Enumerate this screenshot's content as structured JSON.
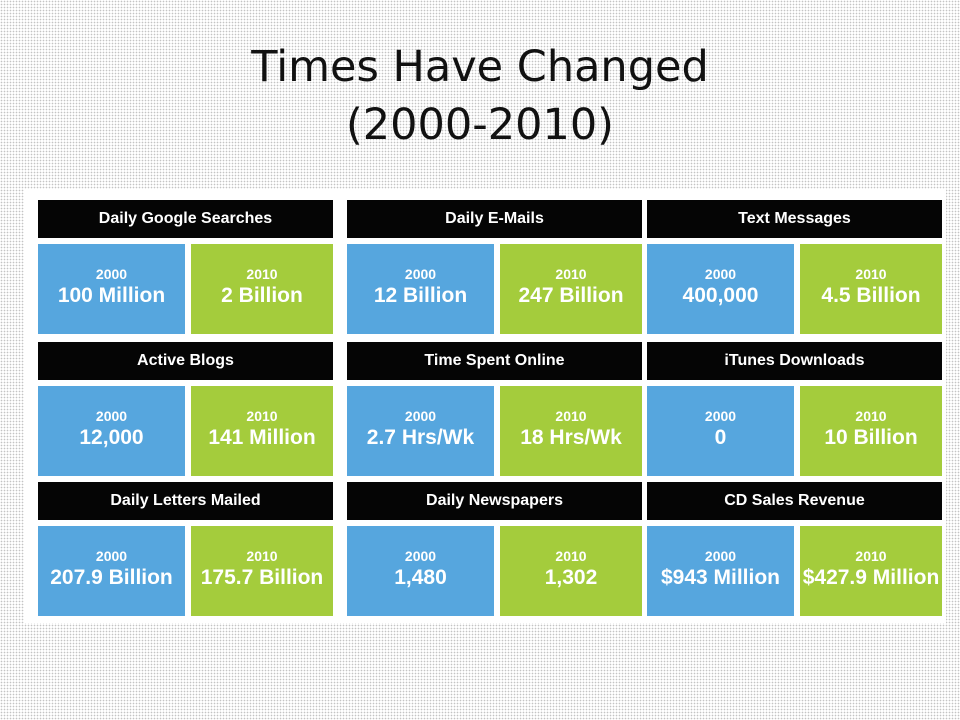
{
  "title": {
    "line1": "Times Have Changed",
    "line2": "(2000-2010)"
  },
  "colors": {
    "header": "#050505",
    "year2000": "#56a6de",
    "year2010": "#a4cc3c"
  },
  "stats": [
    {
      "label": "Daily Google Searches",
      "y1": "2000",
      "v1": "100 Million",
      "y2": "2010",
      "v2": "2 Billion"
    },
    {
      "label": "Daily E-Mails",
      "y1": "2000",
      "v1": "12 Billion",
      "y2": "2010",
      "v2": "247 Billion"
    },
    {
      "label": "Text Messages",
      "y1": "2000",
      "v1": "400,000",
      "y2": "2010",
      "v2": "4.5 Billion"
    },
    {
      "label": "Active Blogs",
      "y1": "2000",
      "v1": "12,000",
      "y2": "2010",
      "v2": "141 Million"
    },
    {
      "label": "Time Spent Online",
      "y1": "2000",
      "v1": "2.7 Hrs/Wk",
      "y2": "2010",
      "v2": "18 Hrs/Wk"
    },
    {
      "label": "iTunes Downloads",
      "y1": "2000",
      "v1": "0",
      "y2": "2010",
      "v2": "10 Billion"
    },
    {
      "label": "Daily Letters Mailed",
      "y1": "2000",
      "v1": "207.9 Billion",
      "y2": "2010",
      "v2": "175.7 Billion"
    },
    {
      "label": "Daily Newspapers",
      "y1": "2000",
      "v1": "1,480",
      "y2": "2010",
      "v2": "1,302"
    },
    {
      "label": "CD Sales Revenue",
      "y1": "2000",
      "v1": "$943 Million",
      "y2": "2010",
      "v2": "$427.9 Million"
    }
  ]
}
